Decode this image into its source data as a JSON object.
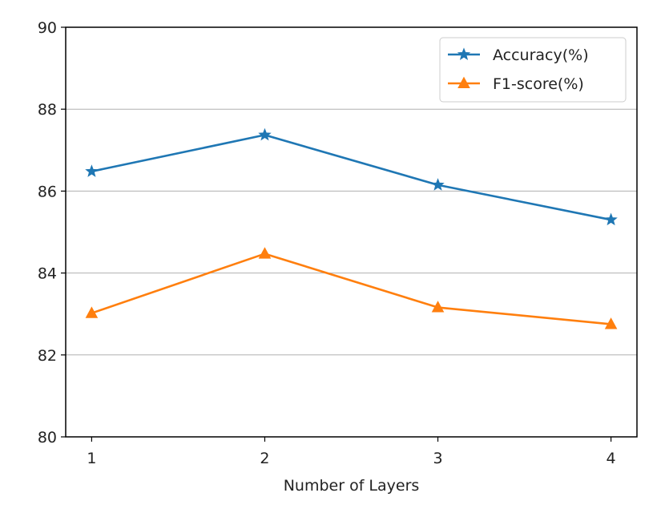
{
  "chart_data": {
    "type": "line",
    "title": "",
    "xlabel": "Number of Layers",
    "ylabel": "",
    "x": [
      1,
      2,
      3,
      4
    ],
    "xticks": [
      "1",
      "2",
      "3",
      "4"
    ],
    "xlim": [
      0.85,
      4.15
    ],
    "ylim": [
      80,
      90
    ],
    "yticks": [
      "80",
      "82",
      "84",
      "86",
      "88",
      "90"
    ],
    "grid": "horizontal",
    "legend_position": "upper right",
    "series": [
      {
        "name": "Accuracy(%)",
        "values": [
          86.48,
          87.37,
          86.15,
          85.3
        ],
        "color": "#1f77b4",
        "marker": "star"
      },
      {
        "name": "F1-score(%)",
        "values": [
          83.02,
          84.47,
          83.16,
          82.75
        ],
        "color": "#ff7f0e",
        "marker": "triangle-up"
      }
    ]
  }
}
